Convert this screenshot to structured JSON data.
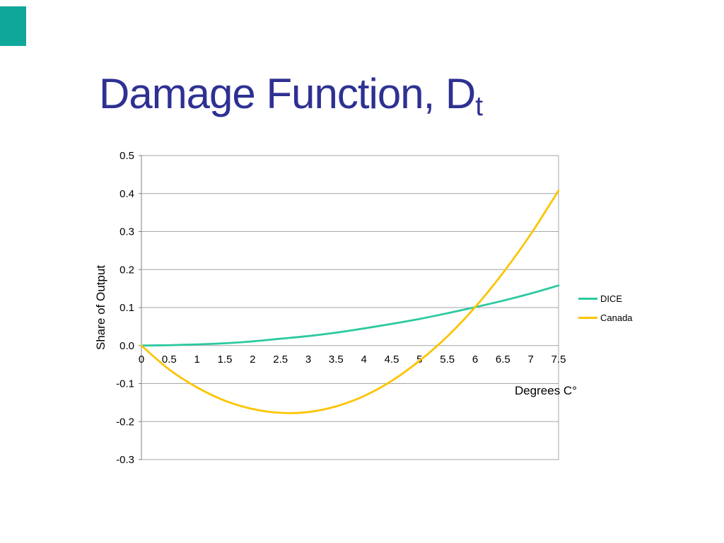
{
  "slide": {
    "title_main": "Damage Function, D",
    "title_subscript": "t",
    "title_color": "#2e3192",
    "accent_color": "#10a79b"
  },
  "chart_data": {
    "type": "line",
    "title": "",
    "xlabel": "Degrees C°",
    "ylabel": "Share of Output",
    "xlim": [
      0,
      7.5
    ],
    "ylim": [
      -0.3,
      0.5
    ],
    "grid": true,
    "legend_position": "right",
    "x_ticks": [
      "0",
      "0.5",
      "1",
      "1.5",
      "2",
      "2.5",
      "3",
      "3.5",
      "4",
      "4.5",
      "5",
      "5.5",
      "6",
      "6.5",
      "7",
      "7.5"
    ],
    "y_ticks": [
      "0.5",
      "0.4",
      "0.3",
      "0.2",
      "0.1",
      "0.0",
      "-0.1",
      "-0.2",
      "-0.3"
    ],
    "x": [
      0,
      0.5,
      1,
      1.5,
      2,
      2.5,
      3,
      3.5,
      4,
      4.5,
      5,
      5.5,
      6,
      6.5,
      7,
      7.5
    ],
    "series": [
      {
        "name": "DICE",
        "color": "#2cc9a0",
        "values": [
          0.0,
          0.001,
          0.003,
          0.006,
          0.011,
          0.018,
          0.025,
          0.034,
          0.045,
          0.057,
          0.07,
          0.085,
          0.101,
          0.118,
          0.137,
          0.158
        ]
      },
      {
        "name": "Canada",
        "color": "#fcc400",
        "values": [
          0.0,
          -0.063,
          -0.11,
          -0.145,
          -0.167,
          -0.177,
          -0.175,
          -0.16,
          -0.133,
          -0.093,
          -0.04,
          0.024,
          0.101,
          0.191,
          0.293,
          0.408
        ]
      }
    ]
  }
}
